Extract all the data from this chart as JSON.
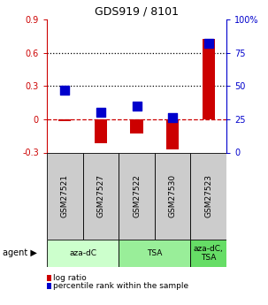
{
  "title": "GDS919 / 8101",
  "samples": [
    "GSM27521",
    "GSM27527",
    "GSM27522",
    "GSM27530",
    "GSM27523"
  ],
  "log_ratios": [
    -0.02,
    -0.22,
    -0.13,
    -0.27,
    0.73
  ],
  "percentile_ranks": [
    47,
    30,
    35,
    26,
    82
  ],
  "ylim_left": [
    -0.3,
    0.9
  ],
  "ylim_right": [
    0,
    100
  ],
  "yticks_left": [
    -0.3,
    0.0,
    0.3,
    0.6,
    0.9
  ],
  "yticks_right": [
    0,
    25,
    50,
    75,
    100
  ],
  "ytick_labels_left": [
    "-0.3",
    "0",
    "0.3",
    "0.6",
    "0.9"
  ],
  "ytick_labels_right": [
    "0",
    "25",
    "50",
    "75",
    "100%"
  ],
  "hlines": [
    0.0,
    0.3,
    0.6
  ],
  "hline_styles": [
    "dashed",
    "dotted",
    "dotted"
  ],
  "hline_colors": [
    "#cc0000",
    "#000000",
    "#000000"
  ],
  "agent_groups": [
    {
      "label": "aza-dC",
      "span": [
        0,
        2
      ],
      "color": "#ccffcc"
    },
    {
      "label": "TSA",
      "span": [
        2,
        4
      ],
      "color": "#99ee99"
    },
    {
      "label": "aza-dC,\nTSA",
      "span": [
        4,
        5
      ],
      "color": "#66dd66"
    }
  ],
  "bar_color": "#cc0000",
  "dot_color": "#0000cc",
  "bar_width": 0.35,
  "dot_size": 45,
  "sample_box_color": "#cccccc",
  "title_fontsize": 9,
  "tick_fontsize": 7,
  "label_fontsize": 6.5
}
